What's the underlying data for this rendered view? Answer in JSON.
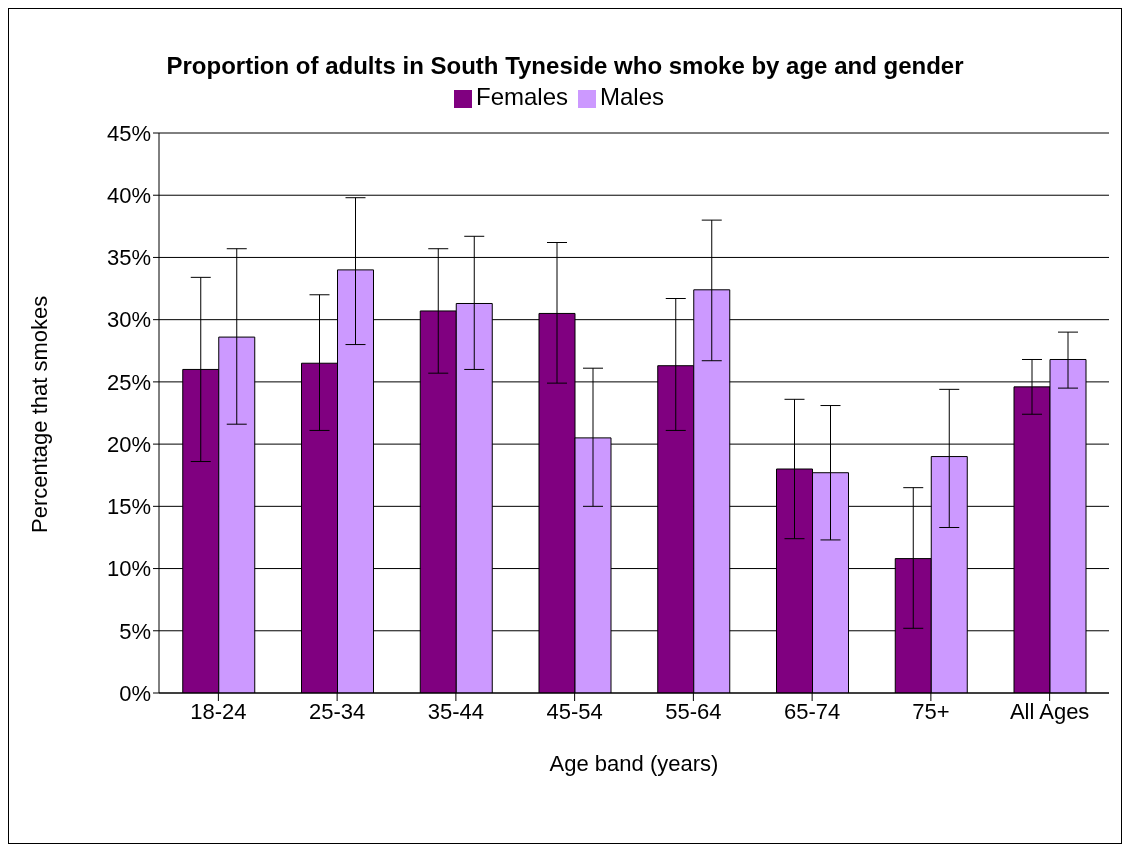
{
  "chart_data": {
    "type": "bar",
    "title": "Proportion of adults in South Tyneside who smoke by age and gender",
    "xlabel": "Age band (years)",
    "ylabel": "Percentage that smokes",
    "categories": [
      "18-24",
      "25-34",
      "35-44",
      "45-54",
      "55-64",
      "65-74",
      "75+",
      "All Ages"
    ],
    "series": [
      {
        "name": "Females",
        "color": "#800080",
        "values": [
          26,
          26.5,
          30.7,
          30.5,
          26.3,
          18,
          10.8,
          24.6
        ],
        "errors": [
          [
            18.6,
            33.4
          ],
          [
            21.1,
            32
          ],
          [
            25.7,
            35.7
          ],
          [
            24.9,
            36.2
          ],
          [
            21.1,
            31.7
          ],
          [
            12.4,
            23.6
          ],
          [
            5.2,
            16.5
          ],
          [
            22.4,
            26.8
          ]
        ]
      },
      {
        "name": "Males",
        "color": "#cc99ff",
        "values": [
          28.6,
          34,
          31.3,
          20.5,
          32.4,
          17.7,
          19,
          26.8
        ],
        "errors": [
          [
            21.6,
            35.7
          ],
          [
            28,
            39.8
          ],
          [
            26,
            36.7
          ],
          [
            15,
            26.1
          ],
          [
            26.7,
            38
          ],
          [
            12.3,
            23.1
          ],
          [
            13.3,
            24.4
          ],
          [
            24.5,
            29
          ]
        ]
      }
    ],
    "ylim": [
      0,
      45
    ],
    "yticks": [
      {
        "value": 0,
        "label": "0%"
      },
      {
        "value": 5,
        "label": "5%"
      },
      {
        "value": 10,
        "label": "10%"
      },
      {
        "value": 15,
        "label": "15%"
      },
      {
        "value": 20,
        "label": "20%"
      },
      {
        "value": 25,
        "label": "25%"
      },
      {
        "value": 30,
        "label": "30%"
      },
      {
        "value": 35,
        "label": "35%"
      },
      {
        "value": 40,
        "label": "40%"
      },
      {
        "value": 45,
        "label": "45%"
      }
    ],
    "grid": "y",
    "legend": "top"
  }
}
